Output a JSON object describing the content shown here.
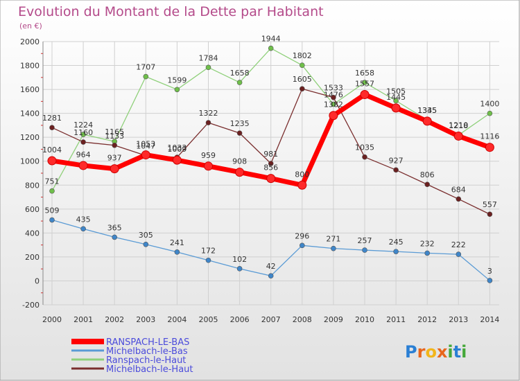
{
  "title": "Evolution du Montant de la Dette par Habitant",
  "subtitle": "(en €)",
  "logo": {
    "text": "Proxiti",
    "letters": [
      "P",
      "r",
      "o",
      "x",
      "i",
      "t",
      "i"
    ],
    "colors": [
      "#2a7fd4",
      "#e8661c",
      "#f2b51a",
      "#e8661c",
      "#45a83a",
      "#2a7fd4",
      "#45a83a"
    ]
  },
  "chart_data": {
    "type": "line",
    "x": [
      "2000",
      "2001",
      "2002",
      "2003",
      "2004",
      "2005",
      "2006",
      "2007",
      "2008",
      "2009",
      "2010",
      "2011",
      "2012",
      "2013",
      "2014"
    ],
    "yticks": [
      "-200",
      "0",
      "200",
      "400",
      "600",
      "800",
      "1000",
      "1200",
      "1400",
      "1600",
      "1800",
      "2000"
    ],
    "ylim": [
      -200,
      2000
    ],
    "grid": true,
    "legend_position": "bottom-left",
    "series": [
      {
        "name": "RANSPACH-LE-BAS",
        "color": "#ff0000",
        "marker": "#ff2a2a",
        "width": 7,
        "r": 6,
        "values": [
          1004,
          964,
          937,
          1053,
          1009,
          959,
          908,
          856,
          800,
          1382,
          1557,
          1445,
          1335,
          1210,
          1116
        ],
        "labels": [
          "1004",
          "964",
          "937",
          "1053",
          "1009",
          "959",
          "908",
          "856",
          "800",
          "1382",
          "1557",
          "1445",
          "1335",
          "1210",
          "1116"
        ]
      },
      {
        "name": "Michelbach-le-Bas",
        "color": "#5a9bd5",
        "marker": "#3f86c9",
        "width": 1.3,
        "r": 3.5,
        "values": [
          509,
          435,
          365,
          305,
          241,
          172,
          102,
          42,
          296,
          271,
          257,
          245,
          232,
          222,
          3
        ],
        "labels": [
          "509",
          "435",
          "365",
          "305",
          "241",
          "172",
          "102",
          "42",
          "296",
          "271",
          "257",
          "245",
          "232",
          "222",
          "3"
        ]
      },
      {
        "name": "Ranspach-le-Haut",
        "color": "#8fd07a",
        "marker": "#6fbf4a",
        "width": 1.3,
        "r": 3.5,
        "values": [
          751,
          1224,
          1165,
          1707,
          1599,
          1784,
          1658,
          1944,
          1802,
          1476,
          1658,
          1505,
          1345,
          1218,
          1400
        ],
        "labels": [
          "751",
          "1224",
          "1165",
          "1707",
          "1599",
          "1784",
          "1658",
          "1944",
          "1802",
          "1476",
          "1658",
          "1505",
          "1345",
          "1218",
          "1400"
        ]
      },
      {
        "name": "Michelbach-le-Haut",
        "color": "#7a2e2e",
        "marker": "#6b2020",
        "width": 1.3,
        "r": 3.5,
        "values": [
          1281,
          1160,
          1133,
          1047,
          1033,
          1322,
          1235,
          981,
          1605,
          1533,
          1035,
          927,
          806,
          684,
          557
        ],
        "labels": [
          "1281",
          "1160",
          "1133",
          "1047",
          "1033",
          "1322",
          "1235",
          "981",
          "1605",
          "1533",
          "1035",
          "927",
          "806",
          "684",
          "557"
        ]
      }
    ]
  }
}
